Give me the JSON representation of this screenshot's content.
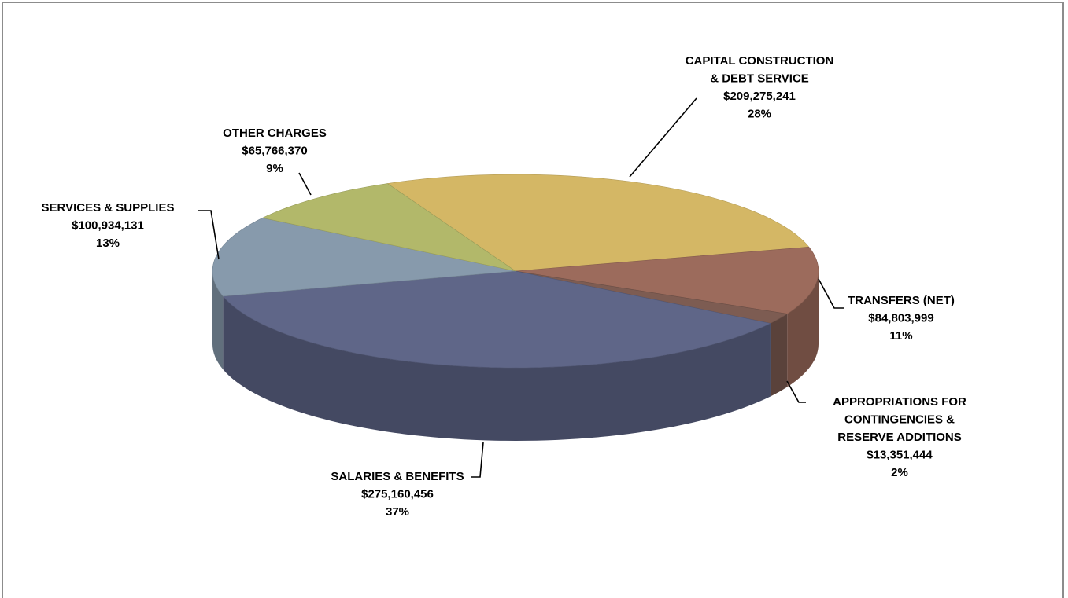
{
  "chart_data": {
    "type": "pie3d",
    "categories": [
      "CAPITAL CONSTRUCTION\n& DEBT SERVICE",
      "TRANSFERS (NET)",
      "APPROPRIATIONS FOR\nCONTINGENCIES &\nRESERVE ADDITIONS",
      "SALARIES & BENEFITS",
      "SERVICES & SUPPLIES",
      "OTHER CHARGES"
    ],
    "values": [
      209275241,
      84803999,
      13351444,
      275160456,
      100934131,
      65766370
    ],
    "value_labels": [
      "$209,275,241",
      "$84,803,999",
      "$13,351,444",
      "$275,160,456",
      "$100,934,131",
      "$65,766,370"
    ],
    "percents": [
      28,
      11,
      2,
      37,
      13,
      9
    ],
    "percent_labels": [
      "28%",
      "11%",
      "2%",
      "37%",
      "13%",
      "9%"
    ],
    "colors": [
      "#d4b765",
      "#9c6b5c",
      "#7d5c52",
      "#5f6688",
      "#879aac",
      "#b2b86a"
    ]
  }
}
